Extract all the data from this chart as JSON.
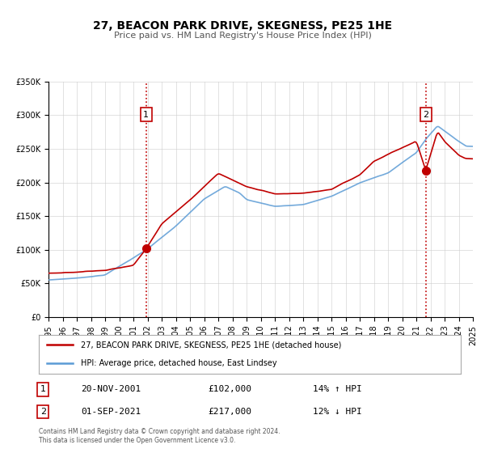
{
  "title": "27, BEACON PARK DRIVE, SKEGNESS, PE25 1HE",
  "subtitle": "Price paid vs. HM Land Registry's House Price Index (HPI)",
  "xlabel": "",
  "ylabel": "",
  "ylim": [
    0,
    350000
  ],
  "xlim": [
    1995,
    2025
  ],
  "yticks": [
    0,
    50000,
    100000,
    150000,
    200000,
    250000,
    300000,
    350000
  ],
  "ytick_labels": [
    "£0",
    "£50K",
    "£100K",
    "£150K",
    "£200K",
    "£250K",
    "£300K",
    "£350K"
  ],
  "xticks": [
    1995,
    1996,
    1997,
    1998,
    1999,
    2000,
    2001,
    2002,
    2003,
    2004,
    2005,
    2006,
    2007,
    2008,
    2009,
    2010,
    2011,
    2012,
    2013,
    2014,
    2015,
    2016,
    2017,
    2018,
    2019,
    2020,
    2021,
    2022,
    2023,
    2024,
    2025
  ],
  "hpi_color": "#5b9bd5",
  "price_color": "#c00000",
  "vline_color": "#c00000",
  "transaction1": {
    "date_x": 2001.9,
    "price": 102000,
    "label": "1",
    "date_str": "20-NOV-2001",
    "price_str": "£102,000",
    "hpi_pct": "14% ↑ HPI"
  },
  "transaction2": {
    "date_x": 2021.67,
    "price": 217000,
    "label": "2",
    "date_str": "01-SEP-2021",
    "price_str": "£217,000",
    "hpi_pct": "12% ↓ HPI"
  },
  "legend_line1": "27, BEACON PARK DRIVE, SKEGNESS, PE25 1HE (detached house)",
  "legend_line2": "HPI: Average price, detached house, East Lindsey",
  "footnote": "Contains HM Land Registry data © Crown copyright and database right 2024.\nThis data is licensed under the Open Government Licence v3.0.",
  "background_color": "#ffffff",
  "plot_bg_color": "#ffffff",
  "grid_color": "#cccccc"
}
